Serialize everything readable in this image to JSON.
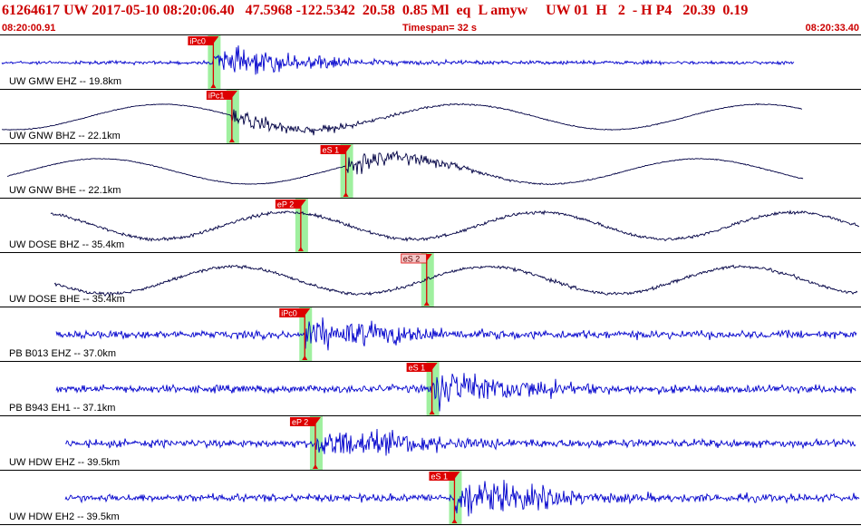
{
  "header": {
    "title": "61264617 UW 2017-05-10 08:20:06.40   47.5968 -122.5342  20.58  0.85 Ml  eq  L amyw     UW 01  H   2  - H P4   20.39  0.19",
    "start_time": "08:20:00.91",
    "timespan": "Timespan=  32 s",
    "end_time": "08:20:33.40"
  },
  "colors": {
    "header_text": "#cc0000",
    "trace_blue": "#0000cc",
    "trace_dark": "#000044",
    "pick_red": "#dd0000",
    "pick_box_light": "#f4c8c8",
    "window_green": "#9ff09f",
    "divider": "#000000"
  },
  "timeline": {
    "start_s": 0.0,
    "end_s": 32.49
  },
  "channels": [
    {
      "label": "UW GMW EHZ -- 19.8km",
      "color": "blue",
      "picks": [
        {
          "label": "iPc0",
          "t": 8.05,
          "style": "solid"
        }
      ]
    },
    {
      "label": "UW GNW BHZ -- 22.1km",
      "color": "dark",
      "picks": [
        {
          "label": "iPc1",
          "t": 8.75,
          "style": "solid"
        }
      ]
    },
    {
      "label": "UW GNW BHE -- 22.1km",
      "color": "dark",
      "picks": [
        {
          "label": "eS 1",
          "t": 13.05,
          "style": "solid"
        }
      ]
    },
    {
      "label": "UW DOSE BHZ -- 35.4km",
      "color": "dark",
      "picks": [
        {
          "label": "eP 2",
          "t": 11.35,
          "style": "solid"
        }
      ]
    },
    {
      "label": "UW DOSE BHE -- 35.4km",
      "color": "dark",
      "picks": [
        {
          "label": "eS 2",
          "t": 16.1,
          "style": "light"
        }
      ]
    },
    {
      "label": "PB B013 EHZ -- 37.0km",
      "color": "blue",
      "picks": [
        {
          "label": "iPc0",
          "t": 11.5,
          "style": "solid"
        }
      ]
    },
    {
      "label": "PB B943 EH1 -- 37.1km",
      "color": "blue",
      "picks": [
        {
          "label": "eS 1",
          "t": 16.3,
          "style": "solid"
        }
      ]
    },
    {
      "label": "UW HDW EHZ -- 39.5km",
      "color": "blue",
      "picks": [
        {
          "label": "eP 2",
          "t": 11.9,
          "style": "solid"
        }
      ]
    },
    {
      "label": "UW HDW EH2 -- 39.5km",
      "color": "blue",
      "picks": [
        {
          "label": "eS 1",
          "t": 17.15,
          "style": "solid"
        }
      ]
    }
  ]
}
